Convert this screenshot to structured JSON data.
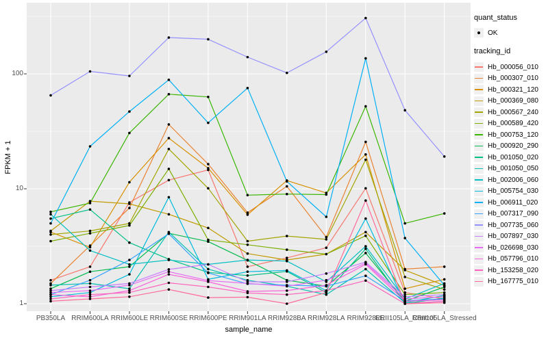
{
  "chart_data": {
    "type": "line",
    "xlabel": "sample_name",
    "ylabel": "FPKM + 1",
    "y_scale": "log10",
    "grid": true,
    "legend_position": "right",
    "panel_bg": "#EBEBEB",
    "grid_color": "#FFFFFF",
    "tick_color": "#333333",
    "tick_text_color": "#4D4D4D",
    "point_color": "#000000",
    "y_ticks": [
      {
        "label": "1",
        "value": 1
      },
      {
        "label": "10",
        "value": 10
      },
      {
        "label": "100",
        "value": 100
      }
    ],
    "y_minor": [
      3.162,
      31.62,
      316.2
    ],
    "categories": [
      "PB350LA",
      "RRIM600LA",
      "RRIM600LE",
      "RRIM600SE",
      "RRIM600PE",
      "RRIM901LA",
      "RRIM928BA",
      "RRIM928LA",
      "RRIM928LE",
      "RRII105LA_Control",
      "RRII105LA_Stressed"
    ],
    "series": [
      {
        "id": "Hb_000056_010",
        "color": "#F8766D",
        "values": [
          1.6,
          2.1,
          7.6,
          11.9,
          14.6,
          2.1,
          2.5,
          3.07,
          10.1,
          1.25,
          1.1
        ]
      },
      {
        "id": "Hb_000307_010",
        "color": "#EA8331",
        "values": [
          1.5,
          3.2,
          6.8,
          36.3,
          16.4,
          6.2,
          10.5,
          3.8,
          25.6,
          2.0,
          2.1
        ]
      },
      {
        "id": "Hb_000321_120",
        "color": "#D89000",
        "values": [
          4.2,
          3.1,
          11.4,
          27.6,
          15.1,
          5.95,
          11.8,
          9.2,
          19.9,
          1.35,
          1.63
        ]
      },
      {
        "id": "Hb_000369_080",
        "color": "#C09B00",
        "values": [
          4.3,
          7.8,
          7.4,
          6.0,
          4.56,
          2.73,
          2.4,
          2.7,
          4.2,
          1.96,
          1.44
        ]
      },
      {
        "id": "Hb_000567_240",
        "color": "#A3A500",
        "values": [
          4.0,
          4.3,
          5.0,
          22.2,
          10.1,
          3.5,
          3.88,
          3.63,
          17.9,
          1.71,
          1.33
        ]
      },
      {
        "id": "Hb_000589_420",
        "color": "#7CAE00",
        "values": [
          3.5,
          4.1,
          4.8,
          14.9,
          3.59,
          3.26,
          2.95,
          2.7,
          3.9,
          1.2,
          1.25
        ]
      },
      {
        "id": "Hb_000753_120",
        "color": "#39B600",
        "values": [
          6.3,
          7.5,
          30.6,
          66.6,
          63.0,
          8.8,
          9.0,
          8.9,
          52.2,
          5.0,
          6.1
        ]
      },
      {
        "id": "Hb_000920_290",
        "color": "#00BB4E",
        "values": [
          1.35,
          1.9,
          2.1,
          4.1,
          3.47,
          2.38,
          1.6,
          1.42,
          2.76,
          1.05,
          1.4
        ]
      },
      {
        "id": "Hb_001050_020",
        "color": "#00C087",
        "values": [
          5.5,
          6.6,
          3.4,
          2.44,
          1.87,
          1.76,
          1.91,
          1.25,
          3.0,
          1.0,
          1.12
        ]
      },
      {
        "id": "Hb_001050_050",
        "color": "#00C0B2",
        "values": [
          1.45,
          1.5,
          1.35,
          4.2,
          2.0,
          1.6,
          1.42,
          1.2,
          2.0,
          1.02,
          1.18
        ]
      },
      {
        "id": "Hb_002006_060",
        "color": "#00BFC4",
        "values": [
          6.0,
          2.9,
          2.2,
          2.4,
          2.2,
          2.4,
          2.35,
          1.55,
          3.16,
          1.1,
          1.5
        ]
      },
      {
        "id": "Hb_005754_030",
        "color": "#00BADE",
        "values": [
          1.15,
          1.25,
          1.8,
          8.45,
          1.63,
          1.9,
          1.95,
          1.3,
          5.5,
          1.0,
          1.05
        ]
      },
      {
        "id": "Hb_006911_020",
        "color": "#00B0F6",
        "values": [
          5.0,
          23.4,
          47.0,
          88.7,
          37.5,
          75.3,
          11.6,
          5.7,
          136.5,
          3.72,
          1.45
        ]
      },
      {
        "id": "Hb_007317_090",
        "color": "#35A2FF",
        "values": [
          1.2,
          1.6,
          2.4,
          4.06,
          1.85,
          1.49,
          1.45,
          1.42,
          1.75,
          1.06,
          1.1
        ]
      },
      {
        "id": "Hb_007735_060",
        "color": "#9590FF",
        "values": [
          65,
          105,
          96,
          207,
          200,
          140,
          102,
          155.6,
          306,
          48.2,
          19.1
        ]
      },
      {
        "id": "Hb_007897_030",
        "color": "#C77CFF",
        "values": [
          1.3,
          1.4,
          1.5,
          1.99,
          2.2,
          1.55,
          1.55,
          1.83,
          2.3,
          1.15,
          1.2
        ]
      },
      {
        "id": "Hb_026698_030",
        "color": "#E76BF3",
        "values": [
          1.25,
          1.3,
          1.45,
          1.9,
          1.59,
          1.5,
          1.42,
          1.6,
          2.25,
          1.1,
          1.15
        ]
      },
      {
        "id": "Hb_057796_010",
        "color": "#FA62DB",
        "values": [
          1.2,
          1.15,
          1.3,
          1.8,
          1.55,
          1.28,
          1.3,
          1.45,
          2.2,
          1.05,
          1.08
        ]
      },
      {
        "id": "Hb_153258_020",
        "color": "#FF62BC",
        "values": [
          1.1,
          1.2,
          1.25,
          1.52,
          1.4,
          1.24,
          1.2,
          1.3,
          1.59,
          1.0,
          1.05
        ]
      },
      {
        "id": "Hb_167775_010",
        "color": "#FF6A98",
        "values": [
          1.05,
          1.1,
          1.15,
          1.33,
          1.13,
          1.14,
          1.0,
          1.25,
          7.9,
          1.0,
          1.02
        ]
      }
    ]
  },
  "legend": {
    "quant_title": "quant_status",
    "quant_items": [
      {
        "label": "OK"
      }
    ],
    "tracking_title": "tracking_id"
  }
}
